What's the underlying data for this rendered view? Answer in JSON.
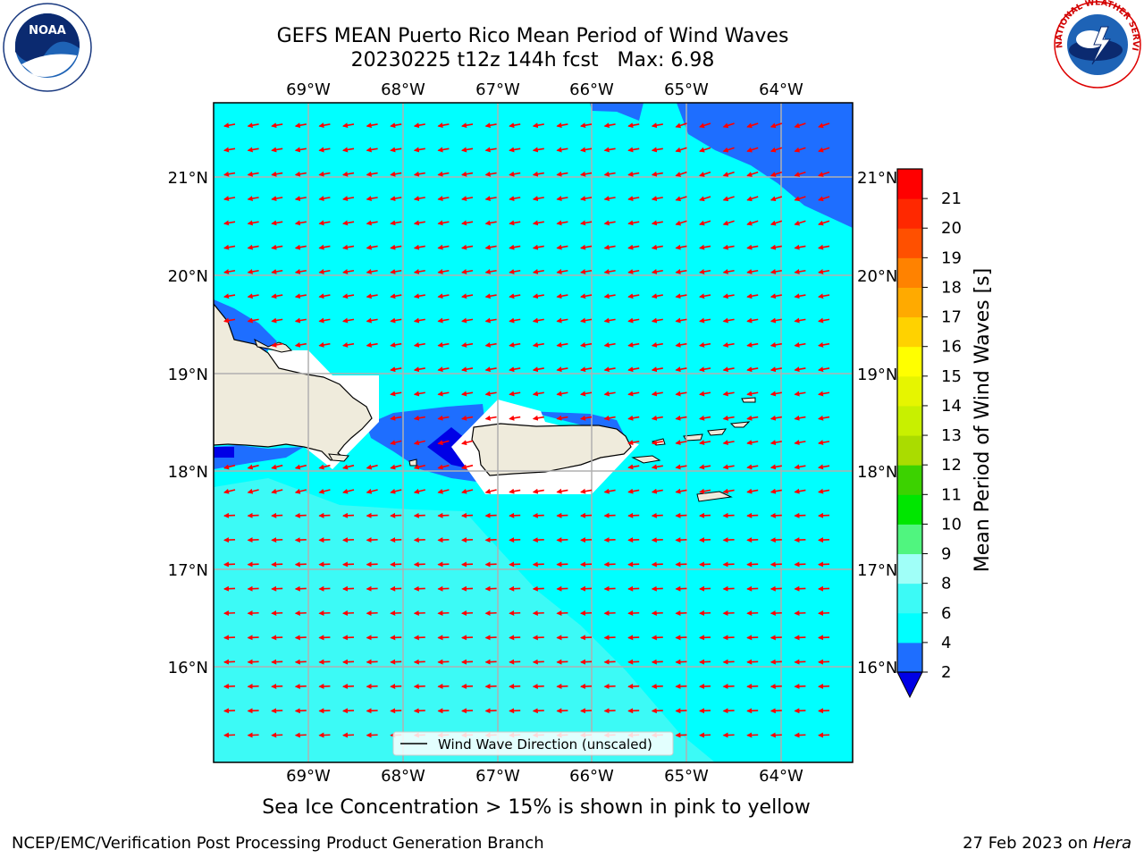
{
  "header": {
    "title_line1": "GEFS MEAN Puerto Rico Mean Period of Wind Waves",
    "title_line2": "20230225 t12z 144h fcst   Max: 6.98"
  },
  "logos": {
    "left": "NOAA",
    "right": "NATIONAL WEATHER SERVICE"
  },
  "map": {
    "lon_labels": [
      "69°W",
      "68°W",
      "67°W",
      "66°W",
      "65°W",
      "64°W"
    ],
    "lat_labels": [
      "21°N",
      "20°N",
      "19°N",
      "18°N",
      "17°N",
      "16°N"
    ],
    "legend_label": "Wind Wave Direction (unscaled)",
    "arrow_color": "#ff0000",
    "land_color": "#efebdc"
  },
  "colorbar": {
    "label": "Mean Period of Wind Waves [s]",
    "ticks": [
      "2",
      "4",
      "6",
      "8",
      "9",
      "10",
      "11",
      "12",
      "13",
      "14",
      "15",
      "16",
      "17",
      "18",
      "19",
      "20",
      "21"
    ],
    "colors": [
      "#1e6eff",
      "#00ffff",
      "#3cfaf6",
      "#a0fff8",
      "#50f57f",
      "#00e600",
      "#3cd200",
      "#aadc00",
      "#c8f000",
      "#e6f500",
      "#ffff00",
      "#ffd200",
      "#ffaa00",
      "#ff8200",
      "#ff5000",
      "#ff2800",
      "#ff0000"
    ],
    "under_color": "#0000e6"
  },
  "footer": {
    "ice_note": "Sea Ice Concentration > 15% is shown in pink to yellow",
    "branch": "NCEP/EMC/Verification Post Processing Product Generation Branch",
    "date_prefix": "27 Feb 2023 on ",
    "machine": "Hera"
  }
}
